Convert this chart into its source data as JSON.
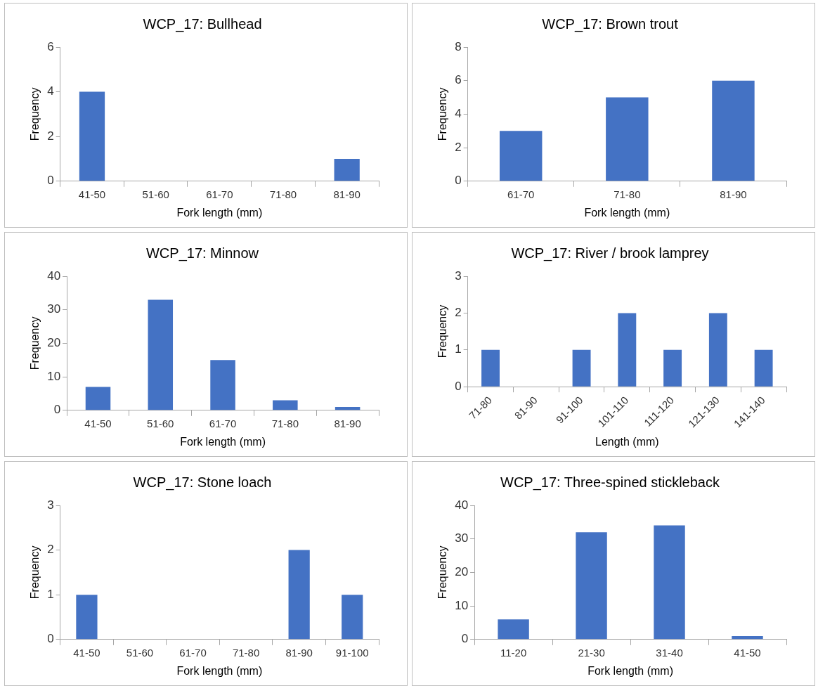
{
  "chart_data": [
    {
      "type": "bar",
      "title": "WCP_17: Bullhead",
      "xlabel": "Fork length (mm)",
      "ylabel": "Frequency",
      "categories": [
        "41-50",
        "51-60",
        "61-70",
        "71-80",
        "81-90"
      ],
      "values": [
        4,
        0,
        0,
        0,
        1
      ],
      "color": "#4472c4",
      "ylim": [
        0,
        6
      ],
      "yticks": [
        0,
        2,
        4,
        6
      ],
      "grid": false
    },
    {
      "type": "bar",
      "title": "WCP_17: Brown trout",
      "xlabel": "Fork length (mm)",
      "ylabel": "Frequency",
      "categories": [
        "61-70",
        "71-80",
        "81-90"
      ],
      "values": [
        3,
        5,
        6
      ],
      "color": "#4472c4",
      "ylim": [
        0,
        8
      ],
      "yticks": [
        0,
        2,
        4,
        6,
        8
      ],
      "grid": false
    },
    {
      "type": "bar",
      "title": "WCP_17: Minnow",
      "xlabel": "Fork length (mm)",
      "ylabel": "Frequency",
      "categories": [
        "41-50",
        "51-60",
        "61-70",
        "71-80",
        "81-90"
      ],
      "values": [
        7,
        33,
        15,
        3,
        1
      ],
      "color": "#4472c4",
      "ylim": [
        0,
        40
      ],
      "yticks": [
        0,
        10,
        20,
        30,
        40
      ],
      "grid": false
    },
    {
      "type": "bar",
      "title": "WCP_17: River / brook lamprey",
      "xlabel": "Length (mm)",
      "ylabel": "Frequency",
      "categories": [
        "71-80",
        "81-90",
        "91-100",
        "101-110",
        "111-120",
        "121-130",
        "141-140"
      ],
      "values": [
        1,
        0,
        1,
        2,
        1,
        2,
        1
      ],
      "color": "#4472c4",
      "ylim": [
        0,
        3
      ],
      "yticks": [
        0,
        1,
        2,
        3
      ],
      "grid": false
    },
    {
      "type": "bar",
      "title": "WCP_17: Stone loach",
      "xlabel": "Fork length (mm)",
      "ylabel": "Frequency",
      "categories": [
        "41-50",
        "51-60",
        "61-70",
        "71-80",
        "81-90",
        "91-100"
      ],
      "values": [
        1,
        0,
        0,
        0,
        2,
        1
      ],
      "color": "#4472c4",
      "ylim": [
        0,
        3
      ],
      "yticks": [
        0,
        1,
        2,
        3
      ],
      "grid": false
    },
    {
      "type": "bar",
      "title": "WCP_17: Three-spined stickleback",
      "xlabel": "Fork length (mm)",
      "ylabel": "Frequency",
      "categories": [
        "11-20",
        "21-30",
        "31-40",
        "41-50"
      ],
      "values": [
        6,
        32,
        34,
        1
      ],
      "color": "#4472c4",
      "ylim": [
        0,
        40
      ],
      "yticks": [
        0,
        10,
        20,
        30,
        40
      ],
      "grid": false
    }
  ]
}
